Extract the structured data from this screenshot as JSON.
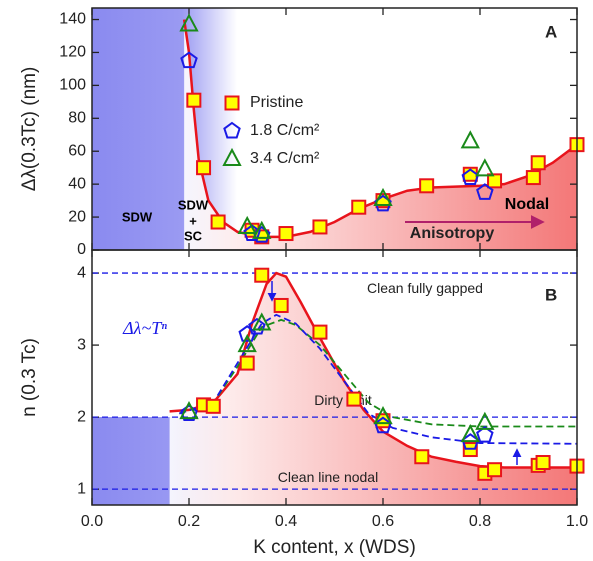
{
  "chart_data": [
    {
      "type": "scatter",
      "panel": "A",
      "ylabel": "Δλ(0.3Tc) (nm)",
      "xlim": [
        0,
        1
      ],
      "xticks": [
        0,
        0.2,
        0.4,
        0.6,
        0.8,
        1
      ],
      "ylim": [
        0,
        147
      ],
      "yticks": [
        0,
        20,
        40,
        60,
        80,
        100,
        120,
        140
      ],
      "series": [
        {
          "name": "Pristine",
          "color": "#e8141c",
          "marker": "square",
          "x": [
            0.21,
            0.23,
            0.26,
            0.33,
            0.35,
            0.4,
            0.47,
            0.55,
            0.6,
            0.69,
            0.78,
            0.83,
            0.91,
            0.92,
            1.0
          ],
          "values": [
            91,
            50,
            17,
            12,
            8,
            10,
            14,
            26,
            30,
            39,
            46,
            42,
            44,
            53,
            64
          ]
        },
        {
          "name": "1.8 C/cm²",
          "color": "#1a1ae6",
          "marker": "pentagon",
          "x": [
            0.2,
            0.33,
            0.35,
            0.6,
            0.78,
            0.81
          ],
          "values": [
            115,
            10,
            9,
            28,
            44,
            35
          ]
        },
        {
          "name": "3.4 C/cm²",
          "color": "#1a8a1a",
          "marker": "triangle",
          "x": [
            0.2,
            0.32,
            0.35,
            0.6,
            0.78,
            0.81
          ],
          "values": [
            137,
            14,
            11,
            31,
            66,
            49
          ]
        }
      ],
      "fits": [
        {
          "color": "#e8141c",
          "style": "solid",
          "x": [
            0.19,
            0.2,
            0.21,
            0.22,
            0.24,
            0.27,
            0.3,
            0.35,
            0.4,
            0.45,
            0.5,
            0.55,
            0.6,
            0.65,
            0.7,
            0.8,
            0.85,
            0.9,
            0.95,
            1.0
          ],
          "values": [
            140,
            120,
            85,
            55,
            30,
            17,
            11,
            8,
            8,
            11,
            17,
            25,
            31,
            36,
            38,
            39,
            40,
            45,
            53,
            64
          ]
        }
      ],
      "annotations": [
        "SDW",
        "SDW",
        "+",
        "SC",
        "Nodal",
        "Anisotropy"
      ],
      "legend": "upper-center"
    },
    {
      "type": "scatter",
      "panel": "B",
      "xlabel": "K content, x (WDS)",
      "ylabel": "n (0.3 Tc)",
      "xlim": [
        0,
        1
      ],
      "xticks": [
        {
          "value": 0,
          "label": "0.0"
        },
        0.2,
        0.4,
        0.6,
        0.8,
        {
          "value": 1,
          "label": "1.0"
        }
      ],
      "ylim": [
        0.78,
        4.32
      ],
      "yticks": [
        1,
        2,
        3,
        4
      ],
      "series": [
        {
          "color": "#e8141c",
          "marker": "square",
          "x": [
            0.23,
            0.25,
            0.32,
            0.35,
            0.39,
            0.47,
            0.54,
            0.6,
            0.68,
            0.78,
            0.81,
            0.83,
            0.92,
            0.93,
            1.0
          ],
          "values": [
            2.17,
            2.15,
            2.75,
            3.97,
            3.55,
            3.18,
            2.25,
            1.95,
            1.45,
            1.55,
            1.22,
            1.27,
            1.33,
            1.37,
            1.32
          ]
        },
        {
          "color": "#1a1ae6",
          "marker": "pentagon",
          "x": [
            0.2,
            0.32,
            0.34,
            0.6,
            0.78,
            0.81
          ],
          "values": [
            2.05,
            3.15,
            3.25,
            1.88,
            1.65,
            1.75
          ]
        },
        {
          "color": "#1a8a1a",
          "marker": "triangle",
          "x": [
            0.2,
            0.32,
            0.35,
            0.6,
            0.78,
            0.81
          ],
          "values": [
            2.07,
            3.0,
            3.3,
            2.0,
            1.75,
            1.92
          ]
        }
      ],
      "fits": [
        {
          "color": "#e8141c",
          "style": "solid",
          "x": [
            0.16,
            0.2,
            0.25,
            0.3,
            0.33,
            0.36,
            0.38,
            0.4,
            0.43,
            0.47,
            0.52,
            0.56,
            0.6,
            0.65,
            0.7,
            0.75,
            0.8,
            0.85,
            1.0
          ],
          "values": [
            2.08,
            2.1,
            2.2,
            2.6,
            3.3,
            3.85,
            4.0,
            3.95,
            3.6,
            3.1,
            2.5,
            2.1,
            1.8,
            1.6,
            1.45,
            1.38,
            1.32,
            1.3,
            1.3
          ]
        },
        {
          "color": "#1a8a1a",
          "style": "dashed",
          "x": [
            0.18,
            0.25,
            0.3,
            0.35,
            0.39,
            0.42,
            0.47,
            0.52,
            0.57,
            0.62,
            0.7,
            0.8,
            1.0
          ],
          "values": [
            2.05,
            2.2,
            2.7,
            3.25,
            3.35,
            3.28,
            3.0,
            2.6,
            2.2,
            2.0,
            1.9,
            1.87,
            1.87
          ]
        },
        {
          "color": "#1a1ae6",
          "style": "dashed",
          "x": [
            0.18,
            0.25,
            0.3,
            0.35,
            0.38,
            0.42,
            0.47,
            0.52,
            0.57,
            0.62,
            0.7,
            0.8,
            1.0
          ],
          "values": [
            2.05,
            2.2,
            2.75,
            3.3,
            3.42,
            3.3,
            2.95,
            2.5,
            2.05,
            1.85,
            1.72,
            1.64,
            1.63
          ]
        }
      ],
      "hlines": [
        {
          "value": 4,
          "label": "Clean fully gapped"
        },
        {
          "value": 2,
          "label": "Dirty limit"
        },
        {
          "value": 1,
          "label": "Clean line nodal"
        }
      ],
      "annotations": [
        "Δλ~Tⁿ"
      ]
    }
  ]
}
